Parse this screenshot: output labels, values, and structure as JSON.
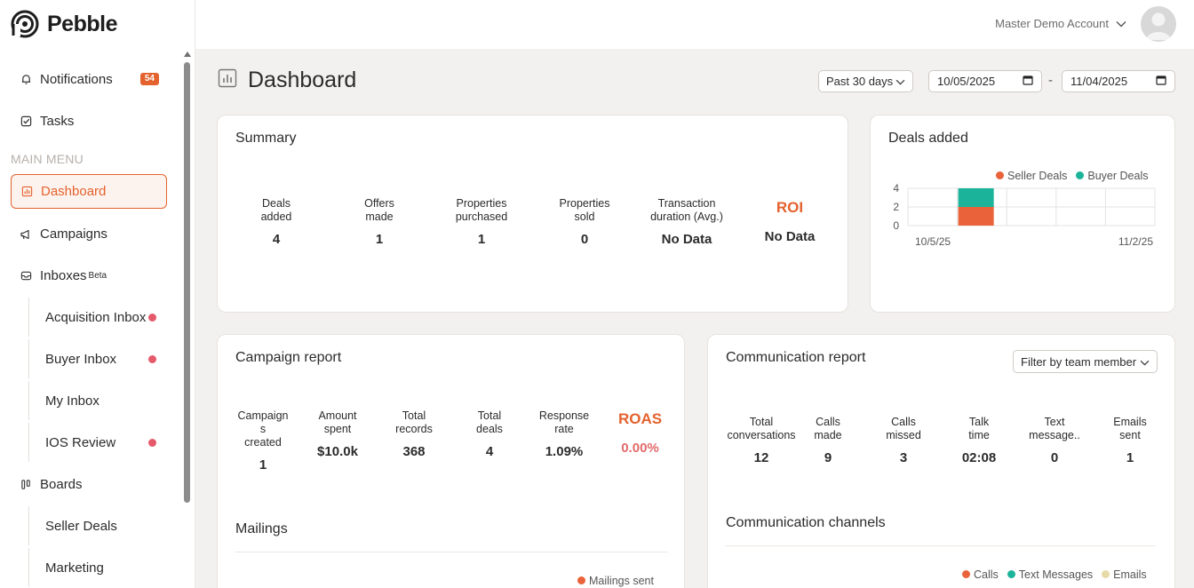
{
  "brand": {
    "name": "Pebble"
  },
  "sidebar": {
    "notifications": {
      "label": "Notifications",
      "badge": "54"
    },
    "tasks": {
      "label": "Tasks"
    },
    "section": "MAIN MENU",
    "dashboard": {
      "label": "Dashboard"
    },
    "campaigns": {
      "label": "Campaigns"
    },
    "inboxes": {
      "label": "Inboxes",
      "tag": "Beta"
    },
    "inbox_items": [
      "Acquisition Inbox",
      "Buyer Inbox",
      "My Inbox",
      "IOS Review"
    ],
    "boards": {
      "label": "Boards"
    },
    "board_items": [
      "Seller Deals",
      "Marketing"
    ]
  },
  "topbar": {
    "account": "Master Demo Account"
  },
  "header": {
    "title": "Dashboard",
    "range": "Past 30 days",
    "date_from": "10/05/2025",
    "date_to": "11/04/2025",
    "separator": "-"
  },
  "summary": {
    "title": "Summary",
    "metrics": [
      {
        "label1": "Deals",
        "label2": "added",
        "value": "4"
      },
      {
        "label1": "Offers",
        "label2": "made",
        "value": "1"
      },
      {
        "label1": "Properties",
        "label2": "purchased",
        "value": "1"
      },
      {
        "label1": "Properties",
        "label2": "sold",
        "value": "0"
      },
      {
        "label1": "Transaction",
        "label2": "duration (Avg.)",
        "value": "No Data"
      }
    ],
    "roi_label": "ROI",
    "roi_value": "No Data"
  },
  "deals_added": {
    "title": "Deals added",
    "legend": [
      "Seller Deals",
      "Buyer Deals"
    ],
    "colors": {
      "seller": "#e9623a",
      "buyer": "#1bb49a"
    },
    "chart_data": {
      "type": "bar",
      "stacked": true,
      "ylim": [
        0,
        4
      ],
      "yticks": [
        "4",
        "2",
        "0"
      ],
      "xticks": [
        "10/5/25",
        "11/2/25"
      ],
      "series": [
        {
          "name": "Seller Deals",
          "value": 2
        },
        {
          "name": "Buyer Deals",
          "value": 2
        }
      ]
    }
  },
  "campaign_report": {
    "title": "Campaign report",
    "metrics": [
      {
        "label1": "Campaign",
        "label2": "s",
        "label3": "created",
        "value": "1"
      },
      {
        "label1": "Amount",
        "label2": "spent",
        "label3": "",
        "value": "$10.0k"
      },
      {
        "label1": "Total",
        "label2": "records",
        "label3": "",
        "value": "368"
      },
      {
        "label1": "Total",
        "label2": "deals",
        "label3": "",
        "value": "4"
      },
      {
        "label1": "Response",
        "label2": "rate",
        "label3": "",
        "value": "1.09%"
      }
    ],
    "roas_label": "ROAS",
    "roas_value": "0.00%",
    "mailings_title": "Mailings",
    "mailings_legend": "Mailings sent"
  },
  "communication_report": {
    "title": "Communication report",
    "filter": "Filter by team member",
    "metrics": [
      {
        "label1": "Total",
        "label2": "conversations",
        "value": "12"
      },
      {
        "label1": "Calls",
        "label2": "made",
        "value": "9"
      },
      {
        "label1": "Calls",
        "label2": "missed",
        "value": "3"
      },
      {
        "label1": "Talk",
        "label2": "time",
        "value": "02:08"
      },
      {
        "label1": "Text",
        "label2": "message..",
        "value": "0"
      },
      {
        "label1": "Emails",
        "label2": "sent",
        "value": "1"
      }
    ],
    "channels_title": "Communication channels",
    "channels_legend": [
      "Calls",
      "Text Messages",
      "Emails"
    ],
    "channel_colors": {
      "calls": "#e9623a",
      "text": "#1bb49a",
      "emails": "#e8d9a8"
    }
  }
}
